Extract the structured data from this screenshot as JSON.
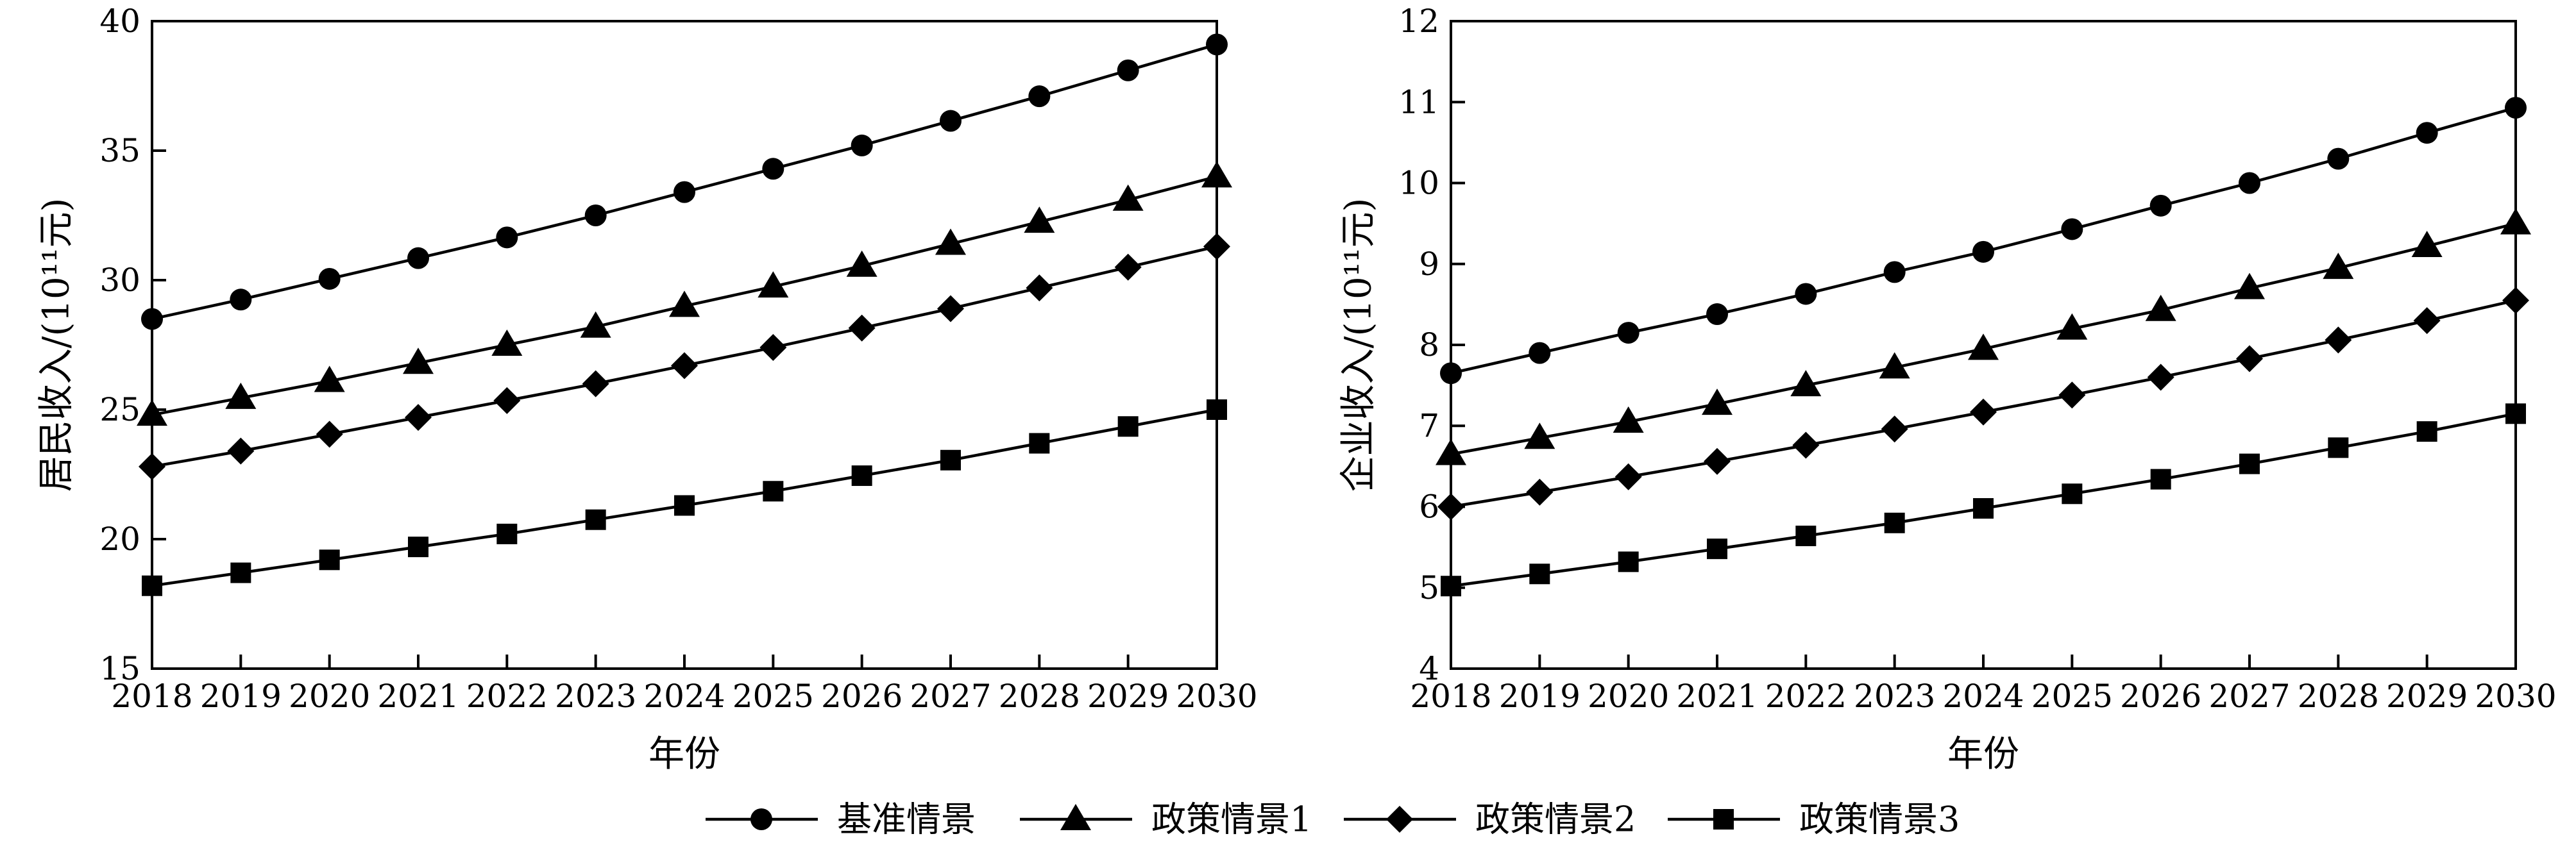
{
  "chart_data": [
    {
      "type": "line",
      "title": "",
      "xlabel": "年份",
      "ylabel": "居民收入/(10¹¹元)",
      "x": [
        2018,
        2019,
        2020,
        2021,
        2022,
        2023,
        2024,
        2025,
        2026,
        2027,
        2028,
        2029,
        2030
      ],
      "xlim": [
        2018,
        2030
      ],
      "ylim": [
        15,
        40
      ],
      "yticks": [
        15,
        20,
        25,
        30,
        35,
        40
      ],
      "grid": false,
      "series": [
        {
          "name": "基准情景",
          "marker": "circle",
          "values": [
            28.5,
            29.25,
            30.05,
            30.85,
            31.65,
            32.5,
            33.4,
            34.3,
            35.2,
            36.15,
            37.1,
            38.1,
            39.1
          ]
        },
        {
          "name": "政策情景1",
          "marker": "triangle",
          "values": [
            24.8,
            25.45,
            26.1,
            26.8,
            27.5,
            28.2,
            29.0,
            29.75,
            30.55,
            31.4,
            32.25,
            33.1,
            34.0
          ]
        },
        {
          "name": "政策情景2",
          "marker": "diamond",
          "values": [
            22.8,
            23.4,
            24.05,
            24.7,
            25.35,
            26.0,
            26.7,
            27.4,
            28.15,
            28.9,
            29.7,
            30.5,
            31.3
          ]
        },
        {
          "name": "政策情景3",
          "marker": "square",
          "values": [
            18.2,
            18.7,
            19.2,
            19.7,
            20.2,
            20.75,
            21.3,
            21.85,
            22.45,
            23.05,
            23.7,
            24.35,
            25.0
          ]
        }
      ]
    },
    {
      "type": "line",
      "title": "",
      "xlabel": "年份",
      "ylabel": "企业收入/(10¹¹元)",
      "x": [
        2018,
        2019,
        2020,
        2021,
        2022,
        2023,
        2024,
        2025,
        2026,
        2027,
        2028,
        2029,
        2030
      ],
      "xlim": [
        2018,
        2030
      ],
      "ylim": [
        4,
        12
      ],
      "yticks": [
        4,
        5,
        6,
        7,
        8,
        9,
        10,
        11,
        12
      ],
      "grid": false,
      "series": [
        {
          "name": "基准情景",
          "marker": "circle",
          "values": [
            7.65,
            7.9,
            8.15,
            8.38,
            8.63,
            8.9,
            9.15,
            9.43,
            9.72,
            10.0,
            10.3,
            10.62,
            10.93
          ]
        },
        {
          "name": "政策情景1",
          "marker": "triangle",
          "values": [
            6.65,
            6.85,
            7.05,
            7.27,
            7.5,
            7.72,
            7.95,
            8.2,
            8.43,
            8.7,
            8.95,
            9.22,
            9.5
          ]
        },
        {
          "name": "政策情景2",
          "marker": "diamond",
          "values": [
            6.0,
            6.18,
            6.37,
            6.56,
            6.76,
            6.96,
            7.17,
            7.38,
            7.6,
            7.83,
            8.06,
            8.3,
            8.55
          ]
        },
        {
          "name": "政策情景3",
          "marker": "square",
          "values": [
            5.02,
            5.17,
            5.32,
            5.48,
            5.64,
            5.8,
            5.98,
            6.16,
            6.34,
            6.53,
            6.73,
            6.93,
            7.15
          ]
        }
      ]
    }
  ],
  "legend": {
    "placement": "bottom-center",
    "items": [
      {
        "label": "基准情景",
        "marker": "circle"
      },
      {
        "label": "政策情景1",
        "marker": "triangle"
      },
      {
        "label": "政策情景2",
        "marker": "diamond"
      },
      {
        "label": "政策情景3",
        "marker": "square"
      }
    ]
  }
}
